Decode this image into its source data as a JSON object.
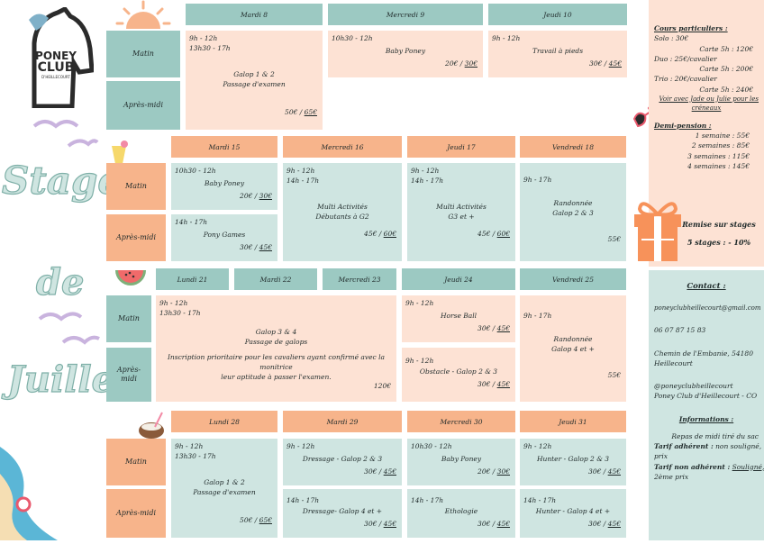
{
  "logo": {
    "line1": "PONEY",
    "line2": "CLUB",
    "line3": "D'HEILLECOURT"
  },
  "title": {
    "word1": "Stages",
    "word2": "de",
    "word3": "Juillet"
  },
  "labels": {
    "matin": "Matin",
    "apres_midi": "Après-midi",
    "apres": "Après-",
    "midi": "midi"
  },
  "week1": {
    "days": [
      "Mardi 8",
      "Mercredi 9",
      "Jeudi 10"
    ],
    "galop": {
      "time": "9h - 12h\n13h30 - 17h",
      "title": "Galop 1 & 2\nPassage d'examen",
      "p1": "50€",
      "p2": "65€"
    },
    "babyponey": {
      "time": "10h30 - 12h",
      "title": "Baby Poney",
      "p1": "20€",
      "p2": "30€"
    },
    "travail": {
      "time": "9h - 12h",
      "title": "Travail à pieds",
      "p1": "30€",
      "p2": "45€"
    }
  },
  "week2": {
    "days": [
      "Mardi 15",
      "Mercredi 16",
      "Jeudi 17",
      "Vendredi 18"
    ],
    "babyponey": {
      "time": "10h30 - 12h",
      "title": "Baby Poney",
      "p1": "20€",
      "p2": "30€"
    },
    "ponygames": {
      "time": "14h - 17h",
      "title": "Pony Games",
      "p1": "30€",
      "p2": "45€"
    },
    "multi1": {
      "time": "9h - 12h\n14h - 17h",
      "title": "Multi Activités\nDébutants à G2",
      "p1": "45€",
      "p2": "60€"
    },
    "multi2": {
      "time": "9h - 12h\n14h - 17h",
      "title": "Multi Activités\nG3 et +",
      "p1": "45€",
      "p2": "60€"
    },
    "rando": {
      "time": "9h - 17h",
      "title": "Randonnée\nGalop 2 & 3",
      "price": "55€"
    }
  },
  "week3": {
    "days": [
      "Lundi 21",
      "Mardi 22",
      "Mercredi 23",
      "Jeudi 24",
      "Vendredi 25"
    ],
    "galop": {
      "time": "9h - 12h\n13h30 - 17h",
      "title": "Galop 3 & 4\nPassage de galops",
      "note": "Inscription prioritaire pour les cavaliers ayant confirmé avec la monitrice\nleur aptitude à passer l'examen.",
      "price": "120€"
    },
    "horseball": {
      "time": "9h - 12h",
      "title": "Horse Ball",
      "p1": "30€",
      "p2": "45€"
    },
    "obstacle": {
      "time": "9h - 12h",
      "title": "Obstacle - Galop 2 & 3",
      "p1": "30€",
      "p2": "45€"
    },
    "rando": {
      "time": "9h - 17h",
      "title": "Randonnée\nGalop 4 et +",
      "price": "55€"
    }
  },
  "week4": {
    "days": [
      "Lundi 28",
      "Mardi 29",
      "Mercredi 30",
      "Jeudi 31"
    ],
    "galop": {
      "time": "9h - 12h\n13h30 - 17h",
      "title": "Galop 1 & 2\nPassage d'examen",
      "p1": "50€",
      "p2": "65€"
    },
    "dressage1": {
      "time": "9h - 12h",
      "title": "Dressage - Galop 2 & 3",
      "p1": "30€",
      "p2": "45€"
    },
    "dressage2": {
      "time": "14h - 17h",
      "title": "Dressage- Galop 4 et +",
      "p1": "30€",
      "p2": "45€"
    },
    "babyponey": {
      "time": "10h30 - 12h",
      "title": "Baby Poney",
      "p1": "20€",
      "p2": "30€"
    },
    "etho": {
      "time": "14h - 17h",
      "title": "Ethologie",
      "p1": "30€",
      "p2": "45€"
    },
    "hunter1": {
      "time": "9h - 12h",
      "title": "Hunter - Galop 2 & 3",
      "p1": "30€",
      "p2": "45€"
    },
    "hunter2": {
      "time": "14h - 17h",
      "title": "Hunter - Galop 4 et +",
      "p1": "30€",
      "p2": "45€"
    }
  },
  "side": {
    "cours_title": "Cours particuliers :",
    "solo": "Solo : 30€",
    "solo_carte": "Carte 5h : 120€",
    "duo": "Duo : 25€/cavalier",
    "duo_carte": "Carte 5h : 200€",
    "trio": "Trio : 20€/cavalier",
    "trio_carte": "Carte 5h : 240€",
    "voir1": "Voir avec Jade ou Julie pour les",
    "voir2": "créneaux",
    "demi_title": "Demi-pension :",
    "s1": "1 semaine : 55€",
    "s2": "2 semaines : 85€",
    "s3": "3 semaines : 115€",
    "s4": "4 semaines : 145€",
    "remise_title": "Remise sur stages",
    "remise_value": "5 stages : - 10%",
    "contact_title": "Contact :",
    "email": "poneyclubheillecourt@gmail.com",
    "phone": "06 07 87 15 83",
    "addr1": "Chemin de l'Embanie, 54180",
    "addr2": "Heillecourt",
    "insta": "@poneyclubheillecourt",
    "fb": "Poney Club d'Heillecourt - CO",
    "info_title": "Informations :",
    "repas": "Repas de midi tiré du sac",
    "tarif_adh_label": "Tarif adhérent :",
    "tarif_adh_value": " non souligné, 1er",
    "prix": "prix",
    "tarif_non_label": "Tarif non adhérent :",
    "tarif_non_value": "Souligné,",
    "prix2": "2ème prix"
  },
  "colors": {
    "teal": "#9cc9c2",
    "peach": "#f7b48b",
    "light_peach": "#fde2d4",
    "light_teal": "#cfe5e1"
  }
}
